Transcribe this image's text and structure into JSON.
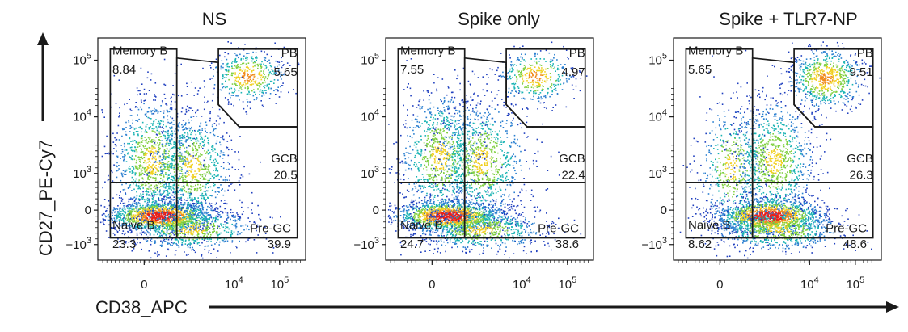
{
  "chart_data": [
    {
      "type": "scatter",
      "subtype": "flow-cytometry-density-plot",
      "title": "NS",
      "xlabel": "CD38_APC",
      "ylabel": "CD27_PE-Cy7",
      "x_scale": "biexponential",
      "y_scale": "biexponential",
      "x_ticks": [
        "0",
        "10^4",
        "10^5"
      ],
      "y_ticks": [
        "10^5",
        "10^4",
        "10^3",
        "0",
        "−10^3"
      ],
      "gates": [
        {
          "name": "Memory B",
          "value": "8.84"
        },
        {
          "name": "PB",
          "value": "5.65"
        },
        {
          "name": "GCB",
          "value": "20.5"
        },
        {
          "name": "Naive B",
          "value": "23.3"
        },
        {
          "name": "Pre-GC",
          "value": "39.9"
        }
      ]
    },
    {
      "type": "scatter",
      "subtype": "flow-cytometry-density-plot",
      "title": "Spike only",
      "xlabel": "CD38_APC",
      "ylabel": "CD27_PE-Cy7",
      "x_scale": "biexponential",
      "y_scale": "biexponential",
      "x_ticks": [
        "0",
        "10^4",
        "10^5"
      ],
      "y_ticks": [
        "10^5",
        "10^4",
        "10^3",
        "0",
        "−10^3"
      ],
      "gates": [
        {
          "name": "Memory B",
          "value": "7.55"
        },
        {
          "name": "PB",
          "value": "4.97"
        },
        {
          "name": "GCB",
          "value": "22.4"
        },
        {
          "name": "Naive B",
          "value": "24.7"
        },
        {
          "name": "Pre-GC",
          "value": "38.6"
        }
      ]
    },
    {
      "type": "scatter",
      "subtype": "flow-cytometry-density-plot",
      "title": "Spike + TLR7-NP",
      "xlabel": "CD38_APC",
      "ylabel": "CD27_PE-Cy7",
      "x_scale": "biexponential",
      "y_scale": "biexponential",
      "x_ticks": [
        "0",
        "10^4",
        "10^5"
      ],
      "y_ticks": [
        "10^5",
        "10^4",
        "10^3",
        "0",
        "−10^3"
      ],
      "gates": [
        {
          "name": "Memory B",
          "value": "5.65"
        },
        {
          "name": "PB",
          "value": "9.51"
        },
        {
          "name": "GCB",
          "value": "26.3"
        },
        {
          "name": "Naive B",
          "value": "8.62"
        },
        {
          "name": "Pre-GC",
          "value": "48.6"
        }
      ]
    }
  ],
  "axes": {
    "x_title": "CD38_APC",
    "y_title": "CD27_PE-Cy7"
  },
  "colors": {
    "ink": "#1a1a1a",
    "density_low": "#1f3fbf",
    "density_mid": "#19b3b3",
    "density_high": "#f0d020",
    "density_peak": "#e8201a"
  }
}
